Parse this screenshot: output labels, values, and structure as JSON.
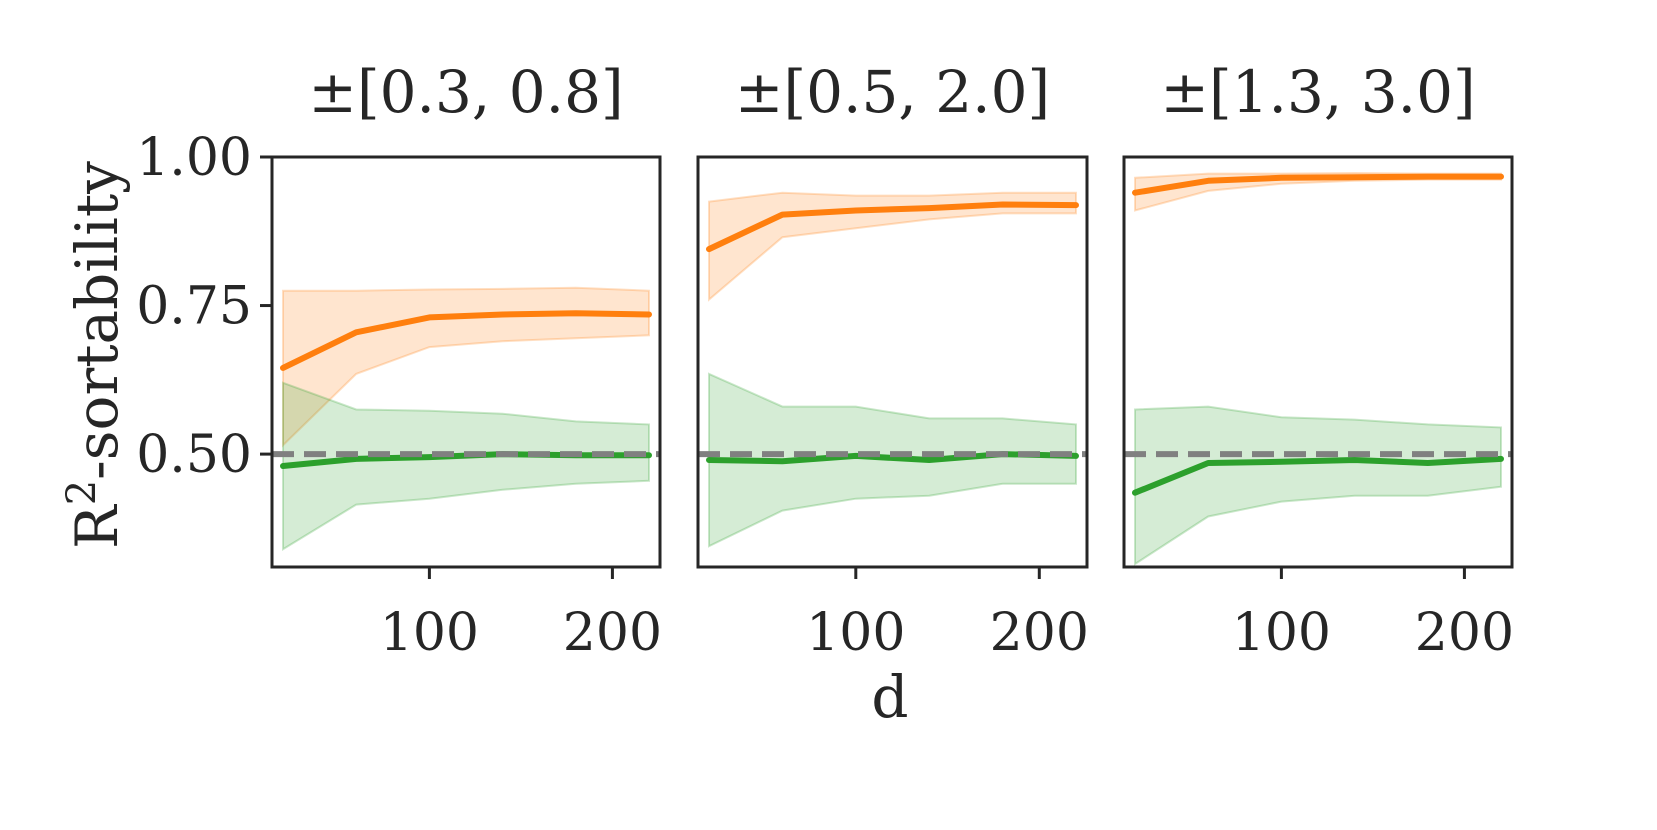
{
  "chart_data": {
    "type": "line",
    "shared": {
      "ylabel_main": "R",
      "ylabel_sup": "2",
      "ylabel_rest": "-sortability",
      "xlabel": "d",
      "ylim": [
        0.31,
        1.0
      ],
      "xlim": [
        14,
        226
      ],
      "yticks": [
        0.5,
        0.75,
        1.0
      ],
      "ytick_labels": [
        "0.50",
        "0.75",
        "1.00"
      ],
      "xticks": [
        100,
        200
      ],
      "xtick_labels": [
        "100",
        "200"
      ],
      "reference_line": 0.5,
      "grid": false,
      "legend": "none"
    },
    "colors": {
      "orange": "#ff7f0e",
      "green": "#2ca02c",
      "reference": "#808080",
      "axes": "#262626"
    },
    "panels": [
      {
        "title": "±[0.3, 0.8]",
        "x": [
          20,
          60,
          100,
          140,
          180,
          220
        ],
        "series": [
          {
            "color": "orange",
            "values": [
              0.645,
              0.705,
              0.73,
              0.735,
              0.737,
              0.735
            ],
            "lower": [
              0.515,
              0.635,
              0.68,
              0.69,
              0.695,
              0.7
            ],
            "upper": [
              0.775,
              0.775,
              0.777,
              0.778,
              0.78,
              0.775
            ]
          },
          {
            "color": "green",
            "values": [
              0.48,
              0.492,
              0.495,
              0.5,
              0.498,
              0.498
            ],
            "lower": [
              0.34,
              0.415,
              0.425,
              0.44,
              0.45,
              0.455
            ],
            "upper": [
              0.62,
              0.575,
              0.573,
              0.568,
              0.555,
              0.55
            ]
          }
        ]
      },
      {
        "title": "±[0.5, 2.0]",
        "x": [
          20,
          60,
          100,
          140,
          180,
          220
        ],
        "series": [
          {
            "color": "orange",
            "values": [
              0.845,
              0.903,
              0.91,
              0.914,
              0.92,
              0.919
            ],
            "lower": [
              0.76,
              0.865,
              0.88,
              0.895,
              0.905,
              0.905
            ],
            "upper": [
              0.925,
              0.94,
              0.935,
              0.935,
              0.94,
              0.94
            ]
          },
          {
            "color": "green",
            "values": [
              0.49,
              0.488,
              0.497,
              0.49,
              0.5,
              0.497
            ],
            "lower": [
              0.345,
              0.405,
              0.425,
              0.43,
              0.45,
              0.45
            ],
            "upper": [
              0.635,
              0.58,
              0.58,
              0.56,
              0.56,
              0.55
            ]
          }
        ]
      },
      {
        "title": "±[1.3, 3.0]",
        "x": [
          20,
          60,
          100,
          140,
          180,
          220
        ],
        "series": [
          {
            "color": "orange",
            "values": [
              0.94,
              0.96,
              0.965,
              0.966,
              0.967,
              0.967
            ],
            "lower": [
              0.91,
              0.943,
              0.955,
              0.96,
              0.962,
              0.962
            ],
            "upper": [
              0.965,
              0.972,
              0.972,
              0.973,
              0.972,
              0.972
            ]
          },
          {
            "color": "green",
            "values": [
              0.435,
              0.485,
              0.487,
              0.49,
              0.485,
              0.492
            ],
            "lower": [
              0.315,
              0.395,
              0.42,
              0.43,
              0.43,
              0.445
            ],
            "upper": [
              0.575,
              0.58,
              0.562,
              0.558,
              0.55,
              0.545
            ]
          }
        ]
      }
    ]
  }
}
